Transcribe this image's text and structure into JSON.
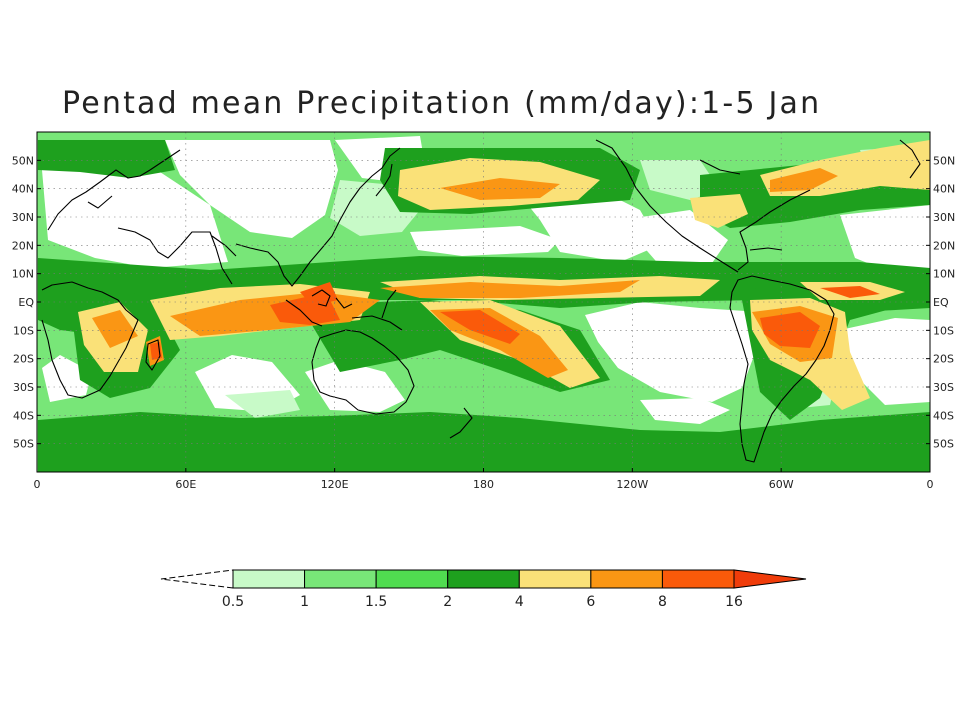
{
  "title": "Pentad mean Precipitation (mm/day):1-5 Jan",
  "map": {
    "lon_range": [
      0,
      360
    ],
    "lat_range": [
      -60,
      60
    ],
    "grid": "dotted",
    "lat_labels": [
      "50N",
      "40N",
      "30N",
      "20N",
      "10N",
      "EQ",
      "10S",
      "20S",
      "30S",
      "40S",
      "50S"
    ],
    "lat_values": [
      50,
      40,
      30,
      20,
      10,
      0,
      -10,
      -20,
      -30,
      -40,
      -50
    ],
    "lon_labels": [
      "0",
      "60E",
      "120E",
      "180",
      "120W",
      "60W",
      "0"
    ],
    "lon_values": [
      0,
      60,
      120,
      180,
      240,
      300,
      360
    ]
  },
  "colorbar": {
    "labels": [
      "0.5",
      "1",
      "1.5",
      "2",
      "4",
      "6",
      "8",
      "16"
    ],
    "bins": [
      {
        "from": "0.5",
        "to": "1",
        "color": "#c8fac8"
      },
      {
        "from": "1",
        "to": "1.5",
        "color": "#78e678"
      },
      {
        "from": "1.5",
        "to": "2",
        "color": "#50dc50"
      },
      {
        "from": "2",
        "to": "4",
        "color": "#1ea01e"
      },
      {
        "from": "4",
        "to": "6",
        "color": "#fae178"
      },
      {
        "from": "6",
        "to": "8",
        "color": "#fa9614"
      },
      {
        "from": "8",
        "to": "16",
        "color": "#fa5a0a"
      }
    ],
    "under_color": "#ffffff",
    "over_color": "#f03c0a"
  },
  "colors": {
    "dry": "#ffffff",
    "light": "#c8fac8",
    "l2": "#78e678",
    "l3": "#50dc50",
    "green": "#1ea01e",
    "yellow": "#fae178",
    "orange": "#fa9614",
    "red": "#fa5a0a",
    "coast": "#000000"
  }
}
